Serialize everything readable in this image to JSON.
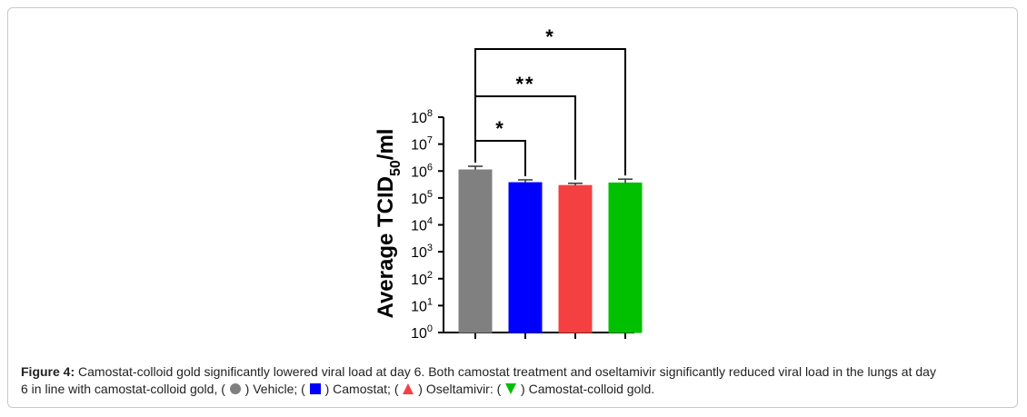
{
  "chart_data": {
    "type": "bar",
    "ylabel_main": "Average TCID",
    "ylabel_sub": "50",
    "ylabel_tail": "/ml",
    "yscale": "log",
    "ylim": [
      1,
      100000000
    ],
    "yticks": [
      {
        "base": "10",
        "exp": "0",
        "value": 1
      },
      {
        "base": "10",
        "exp": "1",
        "value": 10
      },
      {
        "base": "10",
        "exp": "2",
        "value": 100
      },
      {
        "base": "10",
        "exp": "3",
        "value": 1000
      },
      {
        "base": "10",
        "exp": "4",
        "value": 10000
      },
      {
        "base": "10",
        "exp": "5",
        "value": 100000
      },
      {
        "base": "10",
        "exp": "6",
        "value": 1000000
      },
      {
        "base": "10",
        "exp": "7",
        "value": 10000000
      },
      {
        "base": "10",
        "exp": "8",
        "value": 100000000
      }
    ],
    "bars": [
      {
        "color": "#808080",
        "value": 1100000,
        "error_upper": 1500000
      },
      {
        "color": "#0000ff",
        "value": 370000,
        "error_upper": 470000
      },
      {
        "color": "#f44040",
        "value": 290000,
        "error_upper": 350000
      },
      {
        "color": "#00c000",
        "value": 360000,
        "error_upper": 500000
      }
    ],
    "significance": [
      {
        "from": 0,
        "to": 1,
        "label": "*"
      },
      {
        "from": 0,
        "to": 2,
        "label": "**"
      },
      {
        "from": 0,
        "to": 3,
        "label": "*"
      }
    ],
    "grid": false
  },
  "caption": {
    "figure_label": "Figure 4:",
    "line1": " Camostat-colloid gold significantly lowered viral load at day 6. Both camostat treatment and oseltamivir significantly reduced viral load in the lungs at day",
    "line2_start": "6 in line with camostat-colloid gold, ( ",
    "vehicle": " ) Vehicle; ( ",
    "camostat": " ) Camostat; ( ",
    "oseltamivir": " ) Oseltamivir: ( ",
    "colloid": " ) Camostat-colloid gold."
  }
}
